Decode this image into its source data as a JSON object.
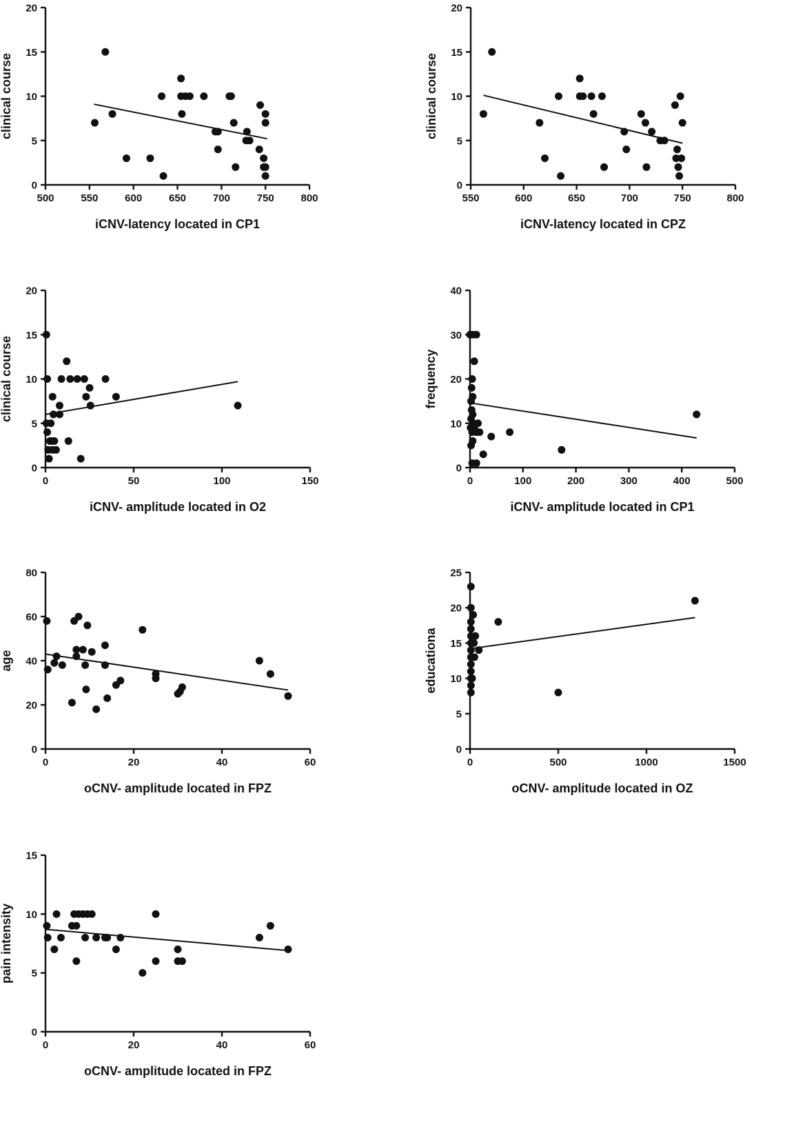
{
  "chart_data": [
    {
      "type": "scatter",
      "title": "",
      "xlabel": "iCNV-latency located in CP1",
      "ylabel": "clinical course",
      "xlim": [
        500,
        800
      ],
      "ylim": [
        0,
        20
      ],
      "xticks": [
        500,
        550,
        600,
        650,
        700,
        750,
        800
      ],
      "yticks": [
        0,
        5,
        10,
        15,
        20
      ],
      "grid": false,
      "points": [
        [
          556,
          7
        ],
        [
          568,
          15
        ],
        [
          576,
          8
        ],
        [
          592,
          3
        ],
        [
          619,
          3
        ],
        [
          632,
          10
        ],
        [
          634,
          1
        ],
        [
          654,
          12
        ],
        [
          654,
          10
        ],
        [
          655,
          8
        ],
        [
          659,
          10
        ],
        [
          664,
          10
        ],
        [
          680,
          10
        ],
        [
          693,
          6
        ],
        [
          696,
          6
        ],
        [
          696,
          4
        ],
        [
          709,
          10
        ],
        [
          711,
          10
        ],
        [
          714,
          7
        ],
        [
          716,
          2
        ],
        [
          728,
          5
        ],
        [
          729,
          6
        ],
        [
          732,
          5
        ],
        [
          743,
          4
        ],
        [
          744,
          9
        ],
        [
          748,
          3
        ],
        [
          748,
          2
        ],
        [
          750,
          8
        ],
        [
          750,
          7
        ],
        [
          750,
          2
        ],
        [
          750,
          1
        ]
      ],
      "fit_line": [
        [
          555,
          9.1
        ],
        [
          752,
          5.2
        ]
      ]
    },
    {
      "type": "scatter",
      "title": "",
      "xlabel": "iCNV-latency located in CPZ",
      "ylabel": "clinical course",
      "xlim": [
        550,
        800
      ],
      "ylim": [
        0,
        20
      ],
      "xticks": [
        550,
        600,
        650,
        700,
        750,
        800
      ],
      "yticks": [
        0,
        5,
        10,
        15,
        20
      ],
      "grid": false,
      "points": [
        [
          562,
          8
        ],
        [
          570,
          15
        ],
        [
          615,
          7
        ],
        [
          620,
          3
        ],
        [
          633,
          10
        ],
        [
          635,
          1
        ],
        [
          653,
          12
        ],
        [
          653,
          10
        ],
        [
          656,
          10
        ],
        [
          664,
          10
        ],
        [
          666,
          8
        ],
        [
          674,
          10
        ],
        [
          676,
          2
        ],
        [
          695,
          6
        ],
        [
          697,
          4
        ],
        [
          711,
          8
        ],
        [
          715,
          7
        ],
        [
          716,
          2
        ],
        [
          721,
          6
        ],
        [
          729,
          5
        ],
        [
          733,
          5
        ],
        [
          743,
          9
        ],
        [
          744,
          3
        ],
        [
          745,
          4
        ],
        [
          746,
          2
        ],
        [
          747,
          1
        ],
        [
          748,
          10
        ],
        [
          749,
          3
        ],
        [
          750,
          7
        ]
      ],
      "fit_line": [
        [
          562,
          10.1
        ],
        [
          750,
          4.7
        ]
      ]
    },
    {
      "type": "scatter",
      "title": "",
      "xlabel": "iCNV- amplitude located in O2",
      "ylabel": "clinical course",
      "xlim": [
        0,
        150
      ],
      "ylim": [
        0,
        20
      ],
      "xticks": [
        0,
        50,
        100,
        150
      ],
      "yticks": [
        0,
        5,
        10,
        15,
        20
      ],
      "grid": false,
      "points": [
        [
          0.5,
          15
        ],
        [
          1,
          10
        ],
        [
          0.5,
          5
        ],
        [
          1,
          4
        ],
        [
          1.5,
          2
        ],
        [
          2,
          1
        ],
        [
          2.5,
          3
        ],
        [
          3,
          5
        ],
        [
          3.5,
          3
        ],
        [
          4,
          8
        ],
        [
          4.5,
          6
        ],
        [
          4,
          2
        ],
        [
          5,
          3
        ],
        [
          6,
          2
        ],
        [
          8,
          7
        ],
        [
          8,
          6
        ],
        [
          9,
          10
        ],
        [
          12,
          12
        ],
        [
          13,
          3
        ],
        [
          14,
          10
        ],
        [
          18,
          10
        ],
        [
          20,
          1
        ],
        [
          22,
          10
        ],
        [
          23,
          8
        ],
        [
          25,
          9
        ],
        [
          25.5,
          7
        ],
        [
          34,
          10
        ],
        [
          40,
          8
        ],
        [
          109,
          7
        ]
      ],
      "fit_line": [
        [
          0,
          6.0
        ],
        [
          109,
          9.7
        ]
      ]
    },
    {
      "type": "scatter",
      "title": "",
      "xlabel": "iCNV- amplitude located in CP1",
      "ylabel": "frequency",
      "xlim": [
        0,
        500
      ],
      "ylim": [
        0,
        40
      ],
      "xticks": [
        0,
        100,
        200,
        300,
        400,
        500
      ],
      "yticks": [
        0,
        10,
        20,
        30,
        40
      ],
      "grid": false,
      "points": [
        [
          0,
          30
        ],
        [
          5,
          30
        ],
        [
          12,
          30
        ],
        [
          8,
          24
        ],
        [
          4,
          20
        ],
        [
          3,
          18
        ],
        [
          5,
          16
        ],
        [
          2,
          15
        ],
        [
          3,
          13
        ],
        [
          5,
          12
        ],
        [
          2,
          11
        ],
        [
          6,
          10
        ],
        [
          1,
          9
        ],
        [
          8,
          9
        ],
        [
          15,
          10
        ],
        [
          4,
          8
        ],
        [
          12,
          8
        ],
        [
          18,
          8
        ],
        [
          2,
          5
        ],
        [
          5,
          6
        ],
        [
          4,
          1
        ],
        [
          12,
          1
        ],
        [
          25,
          3
        ],
        [
          40,
          7
        ],
        [
          75,
          8
        ],
        [
          173,
          4
        ],
        [
          428,
          12
        ]
      ],
      "fit_line": [
        [
          0,
          14.6
        ],
        [
          428,
          6.7
        ]
      ]
    },
    {
      "type": "scatter",
      "title": "",
      "xlabel": "oCNV- amplitude located in FPZ",
      "ylabel": "age",
      "xlim": [
        0,
        60
      ],
      "ylim": [
        0,
        80
      ],
      "xticks": [
        0,
        20,
        40,
        60
      ],
      "yticks": [
        0,
        20,
        40,
        60,
        80
      ],
      "grid": false,
      "points": [
        [
          0.3,
          58
        ],
        [
          0.5,
          36
        ],
        [
          2,
          39
        ],
        [
          2.5,
          42
        ],
        [
          3.8,
          38
        ],
        [
          6,
          21
        ],
        [
          6.5,
          58
        ],
        [
          7,
          45
        ],
        [
          7,
          42
        ],
        [
          7.5,
          60
        ],
        [
          8.5,
          45
        ],
        [
          9,
          38
        ],
        [
          9.2,
          27
        ],
        [
          9.5,
          56
        ],
        [
          10.5,
          44
        ],
        [
          11.5,
          18
        ],
        [
          13.5,
          47
        ],
        [
          13.5,
          38
        ],
        [
          14,
          23
        ],
        [
          16,
          29
        ],
        [
          17,
          31
        ],
        [
          22,
          54
        ],
        [
          25,
          34
        ],
        [
          25,
          32
        ],
        [
          30,
          25
        ],
        [
          30.5,
          26
        ],
        [
          31,
          28
        ],
        [
          48.5,
          40
        ],
        [
          51,
          34
        ],
        [
          55,
          24
        ]
      ],
      "fit_line": [
        [
          0,
          43
        ],
        [
          55,
          26.7
        ]
      ]
    },
    {
      "type": "scatter",
      "title": "",
      "xlabel": "oCNV- amplitude located in OZ",
      "ylabel": "educationa",
      "xlim": [
        0,
        1500
      ],
      "ylim": [
        0,
        25
      ],
      "xticks": [
        0,
        500,
        1000,
        1500
      ],
      "yticks": [
        0,
        5,
        10,
        15,
        20,
        25
      ],
      "grid": false,
      "points": [
        [
          5,
          23
        ],
        [
          5,
          20
        ],
        [
          5,
          18
        ],
        [
          5,
          17
        ],
        [
          5,
          16
        ],
        [
          5,
          15
        ],
        [
          5,
          14
        ],
        [
          5,
          13
        ],
        [
          5,
          12
        ],
        [
          5,
          11
        ],
        [
          5,
          10
        ],
        [
          5,
          9
        ],
        [
          5,
          8
        ],
        [
          18,
          19
        ],
        [
          22,
          15
        ],
        [
          25,
          13
        ],
        [
          12,
          10
        ],
        [
          30,
          16
        ],
        [
          50,
          14
        ],
        [
          160,
          18
        ],
        [
          500,
          8
        ],
        [
          1275,
          21
        ]
      ],
      "fit_line": [
        [
          0,
          14.2
        ],
        [
          1275,
          18.6
        ]
      ]
    },
    {
      "type": "scatter",
      "title": "",
      "xlabel": "oCNV- amplitude located in FPZ",
      "ylabel": "pain intensity",
      "xlim": [
        0,
        60
      ],
      "ylim": [
        0,
        15
      ],
      "xticks": [
        0,
        20,
        40,
        60
      ],
      "yticks": [
        0,
        5,
        10,
        15
      ],
      "grid": false,
      "points": [
        [
          0.3,
          9
        ],
        [
          0.5,
          8
        ],
        [
          2,
          7
        ],
        [
          2.5,
          10
        ],
        [
          3.5,
          8
        ],
        [
          6,
          9
        ],
        [
          6.5,
          10
        ],
        [
          7,
          9
        ],
        [
          7,
          6
        ],
        [
          7.5,
          10
        ],
        [
          8.5,
          10
        ],
        [
          9,
          8
        ],
        [
          9.5,
          10
        ],
        [
          10.5,
          10
        ],
        [
          11.5,
          8
        ],
        [
          13.5,
          8
        ],
        [
          14,
          8
        ],
        [
          16,
          7
        ],
        [
          17,
          8
        ],
        [
          22,
          5
        ],
        [
          25,
          10
        ],
        [
          25,
          6
        ],
        [
          30,
          6
        ],
        [
          30,
          7
        ],
        [
          31,
          6
        ],
        [
          48.5,
          8
        ],
        [
          51,
          9
        ],
        [
          55,
          7
        ]
      ],
      "fit_line": [
        [
          0,
          8.7
        ],
        [
          55,
          6.9
        ]
      ]
    }
  ]
}
